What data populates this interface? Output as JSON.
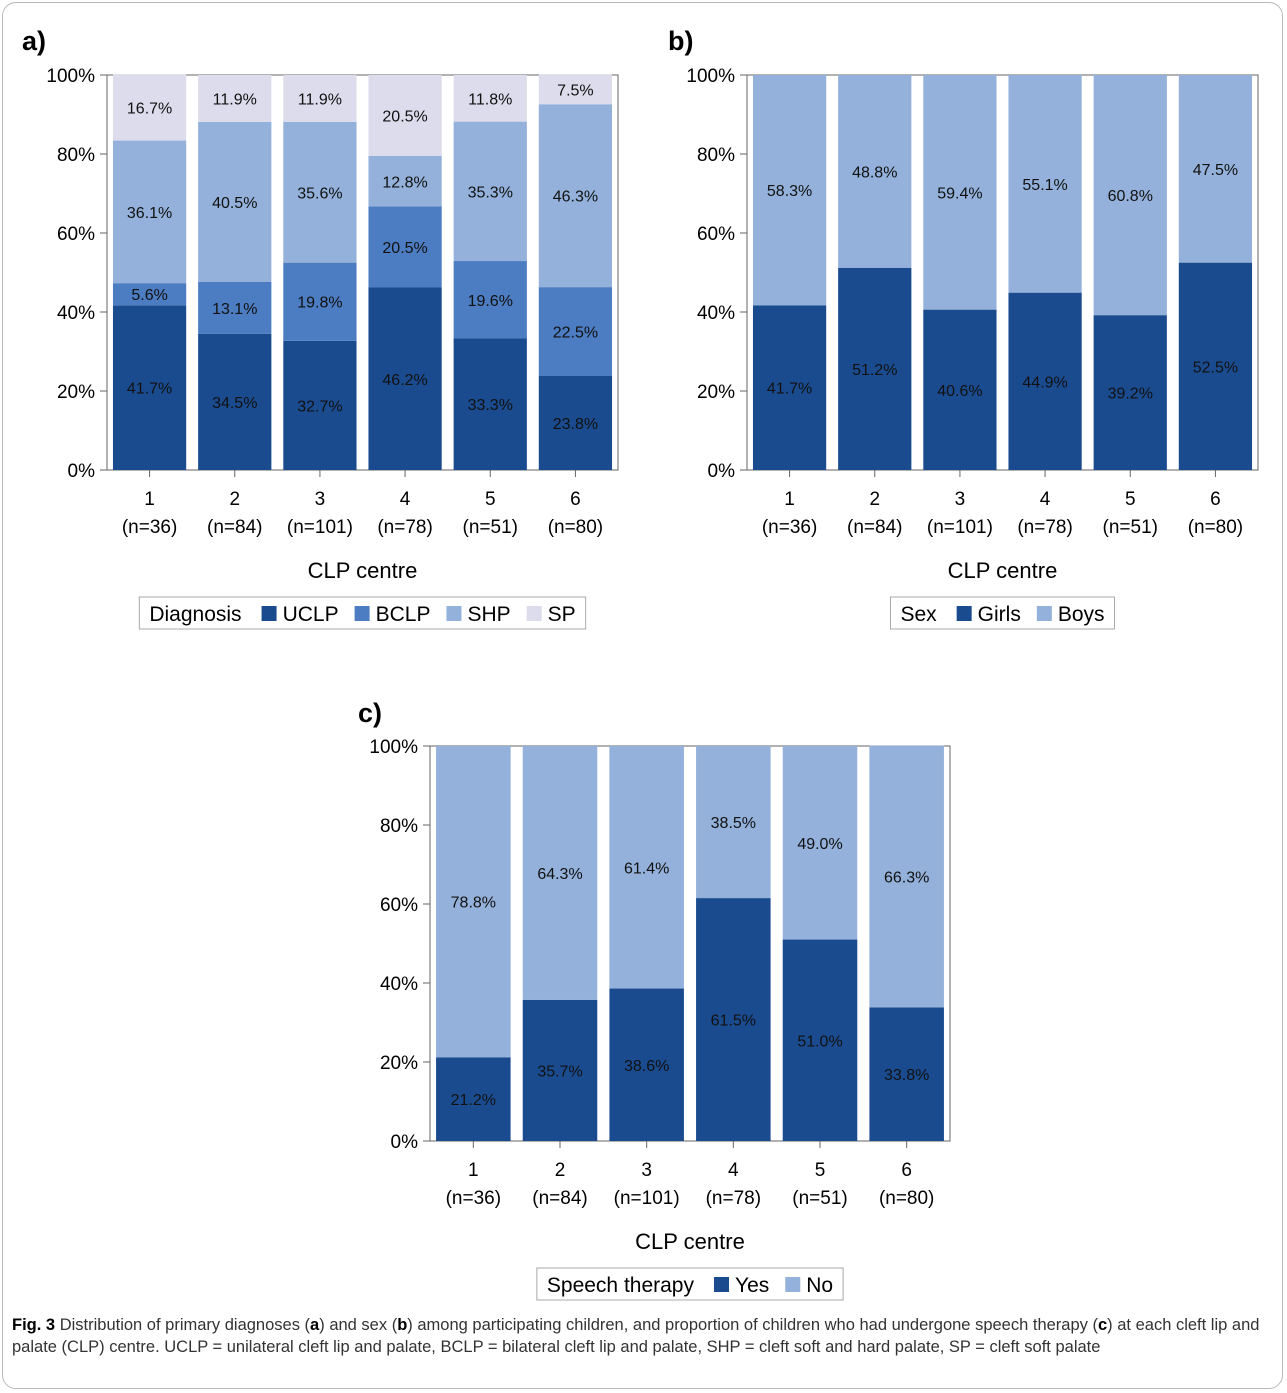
{
  "chart_data": [
    {
      "panel": "a)",
      "type": "bar",
      "stacked": true,
      "categories": [
        "1\n(n=36)",
        "2\n(n=84)",
        "3\n(n=101)",
        "4\n(n=78)",
        "5\n(n=51)",
        "6\n(n=80)"
      ],
      "category_numbers": [
        "1",
        "2",
        "3",
        "4",
        "5",
        "6"
      ],
      "category_counts": [
        "(n=36)",
        "(n=84)",
        "(n=101)",
        "(n=78)",
        "(n=51)",
        "(n=80)"
      ],
      "series": [
        {
          "name": "UCLP",
          "color": "#1b4b8f",
          "values": [
            41.7,
            34.5,
            32.7,
            46.2,
            33.3,
            23.8
          ]
        },
        {
          "name": "BCLP",
          "color": "#4c7cc1",
          "values": [
            5.6,
            13.1,
            19.8,
            20.5,
            19.6,
            22.5
          ]
        },
        {
          "name": "SHP",
          "color": "#93b1da",
          "values": [
            36.1,
            40.5,
            35.6,
            12.8,
            35.3,
            46.3
          ]
        },
        {
          "name": "SP",
          "color": "#dcdcec",
          "values": [
            16.7,
            11.9,
            11.9,
            20.5,
            11.8,
            7.5
          ]
        }
      ],
      "xlabel": "CLP centre",
      "ylim": [
        0,
        100
      ],
      "yticks": [
        "0%",
        "20%",
        "40%",
        "60%",
        "80%",
        "100%"
      ],
      "legend_title": "Diagnosis",
      "legend_position": "bottom"
    },
    {
      "panel": "b)",
      "type": "bar",
      "stacked": true,
      "categories": [
        "1\n(n=36)",
        "2\n(n=84)",
        "3\n(n=101)",
        "4\n(n=78)",
        "5\n(n=51)",
        "6\n(n=80)"
      ],
      "category_numbers": [
        "1",
        "2",
        "3",
        "4",
        "5",
        "6"
      ],
      "category_counts": [
        "(n=36)",
        "(n=84)",
        "(n=101)",
        "(n=78)",
        "(n=51)",
        "(n=80)"
      ],
      "series": [
        {
          "name": "Girls",
          "color": "#1b4b8f",
          "values": [
            41.7,
            51.2,
            40.6,
            44.9,
            39.2,
            52.5
          ]
        },
        {
          "name": "Boys",
          "color": "#93b1da",
          "values": [
            58.3,
            48.8,
            59.4,
            55.1,
            60.8,
            47.5
          ]
        }
      ],
      "xlabel": "CLP centre",
      "ylim": [
        0,
        100
      ],
      "yticks": [
        "0%",
        "20%",
        "40%",
        "60%",
        "80%",
        "100%"
      ],
      "legend_title": "Sex",
      "legend_position": "bottom"
    },
    {
      "panel": "c)",
      "type": "bar",
      "stacked": true,
      "categories": [
        "1\n(n=36)",
        "2\n(n=84)",
        "3\n(n=101)",
        "4\n(n=78)",
        "5\n(n=51)",
        "6\n(n=80)"
      ],
      "category_numbers": [
        "1",
        "2",
        "3",
        "4",
        "5",
        "6"
      ],
      "category_counts": [
        "(n=36)",
        "(n=84)",
        "(n=101)",
        "(n=78)",
        "(n=51)",
        "(n=80)"
      ],
      "series": [
        {
          "name": "Yes",
          "color": "#1b4b8f",
          "values": [
            21.2,
            35.7,
            38.6,
            61.5,
            51.0,
            33.8
          ]
        },
        {
          "name": "No",
          "color": "#93b1da",
          "values": [
            78.8,
            64.3,
            61.4,
            38.5,
            49.0,
            66.3
          ]
        }
      ],
      "xlabel": "CLP centre",
      "ylim": [
        0,
        100
      ],
      "yticks": [
        "0%",
        "20%",
        "40%",
        "60%",
        "80%",
        "100%"
      ],
      "legend_title": "Speech therapy",
      "legend_position": "bottom"
    }
  ],
  "caption": {
    "label": "Fig. 3",
    "parts": [
      "Distribution of primary diagnoses (",
      "a",
      ") and sex (",
      "b",
      ") among participating children, and proportion of children who had undergone speech therapy (",
      "c",
      ") at each cleft lip and palate (CLP) centre. UCLP = unilateral cleft lip and palate, BCLP = bilateral cleft lip and palate, SHP = cleft soft and hard palate, SP = cleft soft palate"
    ]
  }
}
